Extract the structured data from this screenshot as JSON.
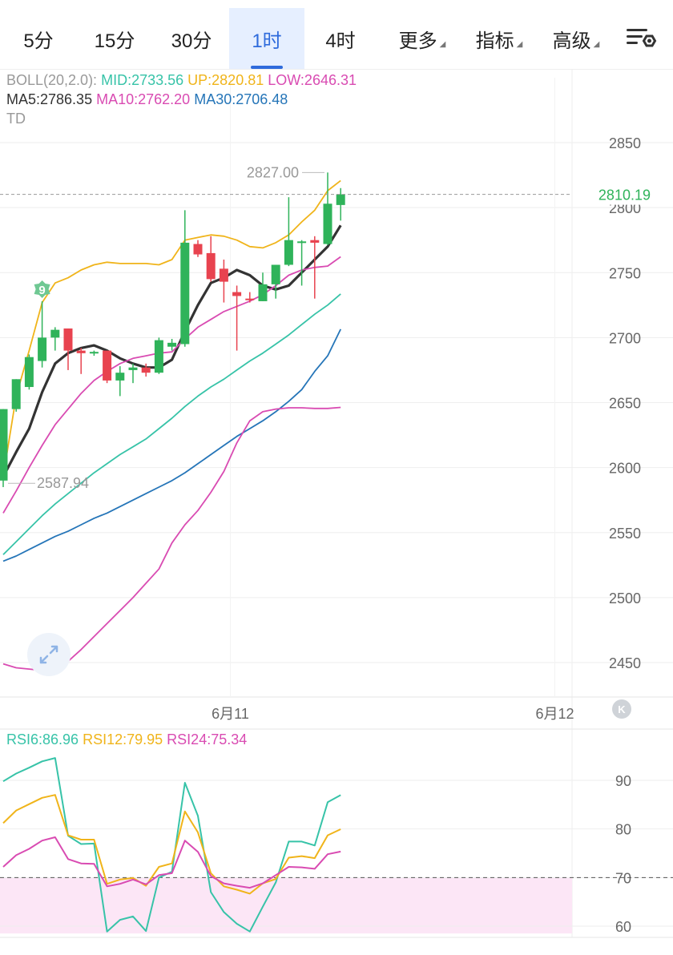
{
  "tabs": [
    {
      "label": "5分",
      "active": false
    },
    {
      "label": "15分",
      "active": false
    },
    {
      "label": "30分",
      "active": false
    },
    {
      "label": "1时",
      "active": true
    },
    {
      "label": "4时",
      "active": false
    },
    {
      "label": "更多",
      "active": false,
      "dropdown": true
    },
    {
      "label": "指标",
      "active": false,
      "dropdown": true
    },
    {
      "label": "高级",
      "active": false,
      "dropdown": true
    }
  ],
  "settings_icon": "chart-settings-icon",
  "legend": {
    "boll": {
      "name": "BOLL(20,2.0):",
      "mid": "MID:2733.56",
      "up": "UP:2820.81",
      "low": "LOW:2646.31"
    },
    "ma": {
      "ma5": "MA5:2786.35",
      "ma10": "MA10:2762.20",
      "ma30": "MA30:2706.48"
    },
    "td": "TD"
  },
  "rsi_legend": {
    "rsi6": "RSI6:86.96",
    "rsi12": "RSI12:79.95",
    "rsi24": "RSI24:75.34"
  },
  "colors": {
    "up": "#2fb35a",
    "down": "#e8434f",
    "mid": "#37c3a8",
    "upper": "#f0b41a",
    "lower": "#d94bb2",
    "ma5": "#333333",
    "ma30": "#2575b8",
    "price_tag": "#2fb35a",
    "rsi6": "#37c3a8",
    "rsi12": "#f0b41a",
    "rsi24": "#d94bb2",
    "rsi_zone": "#fce6f6",
    "grid": "#eeeeee"
  },
  "chart_data": {
    "type": "candlestick",
    "y_axis": {
      "ticks": [
        2850,
        2800,
        2750,
        2700,
        2650,
        2600,
        2550,
        2500,
        2450
      ],
      "range": [
        2440,
        2860
      ]
    },
    "x_axis": {
      "labels": [
        "6月11",
        "6月12"
      ],
      "label_bars": [
        17.5,
        42.5
      ]
    },
    "current_price": 2810.19,
    "high_marker": "2827.00",
    "low_marker": "2587.94",
    "td_count": "9",
    "candles": [
      {
        "o": 2590,
        "h": 2645,
        "l": 2585,
        "c": 2645
      },
      {
        "o": 2645,
        "h": 2668,
        "l": 2643,
        "c": 2668
      },
      {
        "o": 2662,
        "h": 2687,
        "l": 2660,
        "c": 2685
      },
      {
        "o": 2682,
        "h": 2728,
        "l": 2677,
        "c": 2700
      },
      {
        "o": 2700,
        "h": 2708,
        "l": 2690,
        "c": 2706
      },
      {
        "o": 2707,
        "h": 2707,
        "l": 2675,
        "c": 2690
      },
      {
        "o": 2690,
        "h": 2692,
        "l": 2672,
        "c": 2688
      },
      {
        "o": 2688,
        "h": 2690,
        "l": 2686,
        "c": 2689
      },
      {
        "o": 2690,
        "h": 2690,
        "l": 2665,
        "c": 2667
      },
      {
        "o": 2667,
        "h": 2678,
        "l": 2655,
        "c": 2673
      },
      {
        "o": 2675,
        "h": 2680,
        "l": 2665,
        "c": 2677
      },
      {
        "o": 2677,
        "h": 2680,
        "l": 2670,
        "c": 2673
      },
      {
        "o": 2673,
        "h": 2700,
        "l": 2672,
        "c": 2698
      },
      {
        "o": 2693,
        "h": 2699,
        "l": 2690,
        "c": 2696
      },
      {
        "o": 2695,
        "h": 2798,
        "l": 2693,
        "c": 2773
      },
      {
        "o": 2772,
        "h": 2775,
        "l": 2762,
        "c": 2764
      },
      {
        "o": 2765,
        "h": 2778,
        "l": 2743,
        "c": 2745
      },
      {
        "o": 2753,
        "h": 2760,
        "l": 2727,
        "c": 2743
      },
      {
        "o": 2735,
        "h": 2740,
        "l": 2690,
        "c": 2732
      },
      {
        "o": 2730,
        "h": 2735,
        "l": 2727,
        "c": 2729
      },
      {
        "o": 2728,
        "h": 2750,
        "l": 2728,
        "c": 2741
      },
      {
        "o": 2741,
        "h": 2756,
        "l": 2730,
        "c": 2756
      },
      {
        "o": 2756,
        "h": 2808,
        "l": 2755,
        "c": 2775
      },
      {
        "o": 2773,
        "h": 2775,
        "l": 2740,
        "c": 2774
      },
      {
        "o": 2775,
        "h": 2778,
        "l": 2730,
        "c": 2773
      },
      {
        "o": 2772,
        "h": 2827,
        "l": 2771,
        "c": 2803
      },
      {
        "o": 2802,
        "h": 2815,
        "l": 2790,
        "c": 2810.19
      }
    ],
    "series": [
      {
        "name": "MA5",
        "values": [
          2593,
          2612,
          2630,
          2658,
          2680,
          2688,
          2692,
          2694,
          2690,
          2684,
          2680,
          2677,
          2677,
          2683,
          2705,
          2725,
          2742,
          2746,
          2752,
          2748,
          2740,
          2737,
          2740,
          2750,
          2760,
          2770,
          2786.35
        ]
      },
      {
        "name": "MA10",
        "values": [
          2565,
          2582,
          2600,
          2617,
          2633,
          2645,
          2657,
          2667,
          2674,
          2680,
          2684,
          2686,
          2688,
          2689,
          2699,
          2708,
          2714,
          2720,
          2724,
          2728,
          2733,
          2740,
          2748,
          2752,
          2754,
          2755,
          2762.2
        ]
      },
      {
        "name": "MA30",
        "values": [
          2528,
          2532,
          2537,
          2542,
          2547,
          2551,
          2556,
          2561,
          2565,
          2570,
          2575,
          2580,
          2585,
          2590,
          2596,
          2603,
          2610,
          2617,
          2624,
          2630,
          2636,
          2643,
          2651,
          2660,
          2674,
          2686,
          2706.48
        ]
      },
      {
        "name": "MID",
        "values": [
          2533,
          2543,
          2553,
          2563,
          2572,
          2580,
          2588,
          2596,
          2603,
          2610,
          2616,
          2622,
          2630,
          2638,
          2647,
          2655,
          2662,
          2668,
          2675,
          2682,
          2688,
          2695,
          2702,
          2710,
          2718,
          2725,
          2733.56
        ]
      },
      {
        "name": "UP",
        "values": [
          2593,
          2655,
          2690,
          2727,
          2742,
          2746,
          2752,
          2756,
          2758,
          2757,
          2757,
          2757,
          2756,
          2760,
          2775,
          2777,
          2779,
          2778,
          2775,
          2770,
          2769,
          2773,
          2779,
          2789,
          2798,
          2813,
          2820.81
        ]
      },
      {
        "name": "LOW",
        "values": [
          2449,
          2446,
          2445,
          2444,
          2446,
          2451,
          2460,
          2470,
          2480,
          2490,
          2500,
          2511,
          2522,
          2542,
          2556,
          2567,
          2581,
          2597,
          2619,
          2636,
          2643,
          2645,
          2646,
          2646,
          2645.5,
          2645.5,
          2646.31
        ]
      }
    ],
    "rsi": {
      "y_ticks": [
        90,
        80,
        70,
        60
      ],
      "range": [
        58.5,
        96
      ],
      "threshold": 70,
      "series": [
        {
          "name": "RSI6",
          "values": [
            89.8,
            91.4,
            92.6,
            93.9,
            94.6,
            78.6,
            76.9,
            77.0,
            58.9,
            61.3,
            62.0,
            59.0,
            70.0,
            71.2,
            89.5,
            82.7,
            67.0,
            62.9,
            60.5,
            58.9,
            64.0,
            69.0,
            77.4,
            77.4,
            76.6,
            85.5,
            86.96
          ]
        },
        {
          "name": "RSI12",
          "values": [
            81.2,
            83.8,
            85.1,
            86.4,
            87.0,
            78.7,
            77.8,
            77.8,
            68.7,
            69.6,
            69.9,
            68.3,
            72.2,
            72.9,
            83.6,
            79.3,
            70.9,
            68.2,
            67.5,
            66.7,
            68.8,
            69.7,
            74.1,
            74.4,
            74.0,
            78.7,
            79.95
          ]
        },
        {
          "name": "RSI24",
          "values": [
            72.2,
            74.6,
            75.9,
            77.6,
            78.3,
            73.8,
            72.9,
            72.8,
            68.2,
            68.7,
            69.6,
            68.6,
            70.5,
            70.9,
            77.6,
            75.3,
            70.3,
            68.8,
            68.3,
            67.9,
            68.8,
            70.5,
            72.2,
            72.1,
            71.8,
            74.8,
            75.34
          ]
        }
      ]
    }
  }
}
